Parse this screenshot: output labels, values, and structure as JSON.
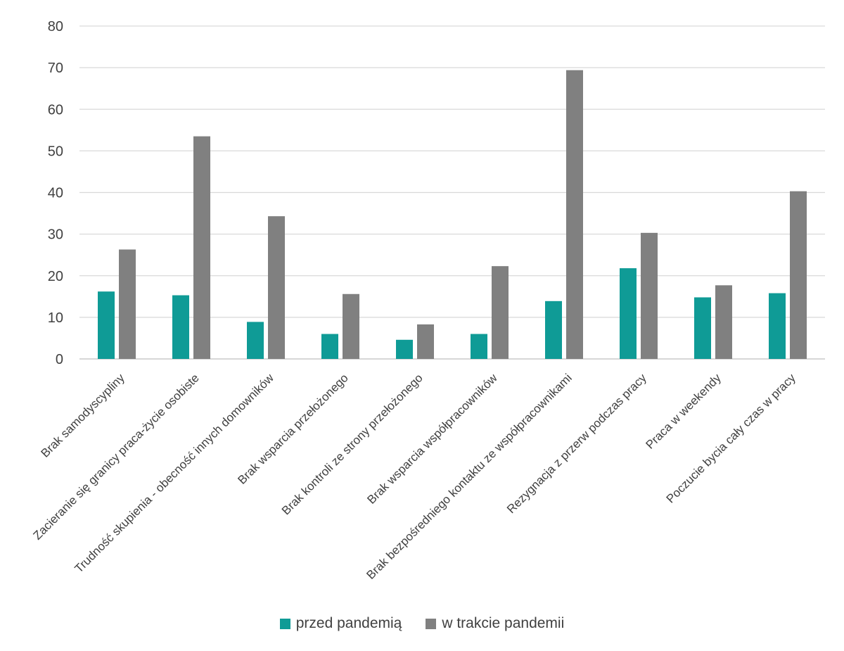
{
  "chart_data": {
    "type": "bar",
    "title": "",
    "xlabel": "",
    "ylabel": "",
    "ylim": [
      0,
      80
    ],
    "yticks": [
      0,
      10,
      20,
      30,
      40,
      50,
      60,
      70,
      80
    ],
    "grid": true,
    "legend_position": "bottom",
    "categories": [
      "Brak samodyscypliny",
      "Zacieranie się granicy praca-życie osobiste",
      "Trudność skupienia - obecność innych domowników",
      "Brak wsparcia przełożonego",
      "Brak kontroli ze strony przełożonego",
      "Brak wsparcia współpracowników",
      "Brak bezpośredniego kontaktu ze współpracownikami",
      "Rezygnacja z przerw podczas pracy",
      "Praca w weekendy",
      "Poczucie bycia cały czas w pracy"
    ],
    "series": [
      {
        "name": "przed pandemią",
        "color": "#0f9b96",
        "values": [
          16.2,
          15.3,
          8.9,
          6.0,
          4.6,
          6.0,
          13.9,
          21.8,
          14.8,
          15.8
        ]
      },
      {
        "name": "w trakcie pandemii",
        "color": "#808080",
        "values": [
          26.3,
          53.5,
          34.3,
          15.6,
          8.3,
          22.3,
          69.4,
          30.3,
          17.7,
          40.3
        ]
      }
    ]
  }
}
